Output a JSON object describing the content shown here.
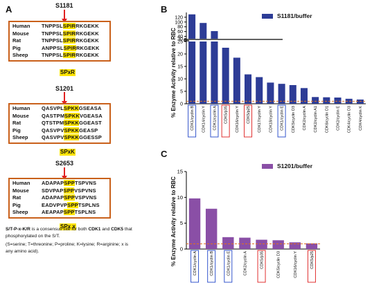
{
  "panels": {
    "a": {
      "letter": "A",
      "sites": [
        {
          "site": "S1181",
          "motif": "SPxR",
          "rows": [
            {
              "species": "Human",
              "before": "TNPPSL",
              "highlight": "SPIR",
              "after": "RKGEKK"
            },
            {
              "species": "Mouse",
              "before": "TNPPSL",
              "highlight": "SPIR",
              "after": "RKGEKK"
            },
            {
              "species": "Rat",
              "before": "TNPPSL",
              "highlight": "SPIR",
              "after": "RKGEKK"
            },
            {
              "species": "Pig",
              "before": "ANPPSL",
              "highlight": "SPIR",
              "after": "RKGEKK"
            },
            {
              "species": "Sheep",
              "before": "TNPPSL",
              "highlight": "SPIR",
              "after": "RKGEKK"
            }
          ]
        },
        {
          "site": "S1201",
          "motif": "SPxK",
          "rows": [
            {
              "species": "Human",
              "before": "QASVPL",
              "highlight": "SPKK",
              "after": "GSEASA"
            },
            {
              "species": "Mouse",
              "before": "QASTPM",
              "highlight": "SPKK",
              "after": "VGEASA"
            },
            {
              "species": "Rat",
              "before": "QTSTPM",
              "highlight": "SPKK",
              "after": "GGEAST"
            },
            {
              "species": "Pig",
              "before": "QASVPV",
              "highlight": "SPKK",
              "after": "GEASP"
            },
            {
              "species": "Sheep",
              "before": "QASVPV",
              "highlight": "SPKK",
              "after": "GGESSP"
            }
          ]
        },
        {
          "site": "S2653",
          "motif": "SPx x",
          "rows": [
            {
              "species": "Human",
              "before": "ADAPAP",
              "highlight": "SPP",
              "after": "TSPVNS"
            },
            {
              "species": "Mouse",
              "before": "SDVPAP",
              "highlight": "SPP",
              "after": "VSPVNS"
            },
            {
              "species": "Rat",
              "before": "ADAPAP",
              "highlight": "SPP",
              "after": "VSPVNS"
            },
            {
              "species": "Pig",
              "before": "EADVPVP",
              "highlight": "SPP",
              "after": "TSPLNS"
            },
            {
              "species": "Sheep",
              "before": "AEAPAP",
              "highlight": "SPP",
              "after": "TSPLNS"
            }
          ]
        }
      ],
      "consensus": {
        "motif": "S/T-P-x-K/R",
        "line1_rest": " is a consensus site for both ",
        "cdk1": "CDK1",
        "and": " and ",
        "cdk5": "CDK5",
        "line1_end": " that",
        "line2": "phosphorylated on the S/T.",
        "line3": "(S=serine; T=threonine; P=proline; K=lysine; R=arginine; x is",
        "line4": "any amino acid)."
      }
    },
    "b": {
      "letter": "B"
    },
    "c": {
      "letter": "C"
    }
  },
  "chart_data": [
    {
      "panel": "B",
      "type": "bar",
      "ylabel": "% Enzyme Activity relative to RBC",
      "series": [
        {
          "name": "S1181/buffer",
          "color": "#2d3c96",
          "values": [
            132,
            96,
            62,
            22.5,
            18.5,
            11.8,
            10.7,
            8.5,
            8.0,
            7.5,
            6.3,
            2.7,
            2.6,
            2.5,
            2.0,
            1.7
          ]
        }
      ],
      "categories": [
        "CDK1/cyclin B",
        "CDK14/cyclin Y",
        "CDK1/cyclin A",
        "CDK5/p35",
        "CDK16/cyclin Y",
        "CDK5/p25",
        "CDK17/cyclin Y",
        "CDK18/cyclin Y",
        "CDK1/cyclin E",
        "CDK5/cyclin D3",
        "CDK2/cyclin A",
        "CDK2/cyclin A1",
        "CDK6/cyclin D1",
        "CDK2/cyclin E",
        "CDK4/cyclin D3",
        "CDK4/cyclin K"
      ],
      "label_boxes": {
        "blue": [
          "CDK1/cyclin B",
          "CDK1/cyclin A",
          "CDK1/cyclin E"
        ],
        "red": [
          "CDK5/p35",
          "CDK5/p25"
        ]
      },
      "y_axis_broken": true,
      "lower_segment": {
        "ylim": [
          0,
          25
        ],
        "ticks": [
          0,
          5,
          10,
          15,
          20,
          25
        ]
      },
      "upper_segment": {
        "ylim": [
          30,
          140
        ],
        "ticks": [
          30,
          40,
          60,
          80,
          100,
          120
        ]
      },
      "reference_line": {
        "y": 1,
        "color": "#e07020",
        "style": "dashed"
      },
      "legend_position": "top-right"
    },
    {
      "panel": "C",
      "type": "bar",
      "ylabel": "% Enzyme Activity relative to RBC",
      "series": [
        {
          "name": "S1201/buffer",
          "color": "#8a4fa6",
          "values": [
            9.8,
            7.8,
            2.3,
            2.2,
            1.8,
            1.7,
            1.3,
            1.1
          ]
        }
      ],
      "categories": [
        "CDK1/cyclin A",
        "CDK1/cyclin B",
        "CDK1/cyclin E",
        "CDK2/cyclin A",
        "CDK5/p35",
        "CDK5/cyclin D3",
        "CDK16/cyclin Y",
        "CDK5/p25"
      ],
      "label_boxes": {
        "blue": [
          "CDK1/cyclin A",
          "CDK1/cyclin B",
          "CDK1/cyclin E"
        ],
        "red": [
          "CDK5/p35",
          "CDK5/p25"
        ]
      },
      "ylim": [
        0,
        15
      ],
      "yticks": [
        0,
        5,
        10,
        15
      ],
      "reference_line": {
        "y": 1,
        "color": "#e07020",
        "style": "dashed"
      },
      "legend_position": "top-right"
    }
  ]
}
